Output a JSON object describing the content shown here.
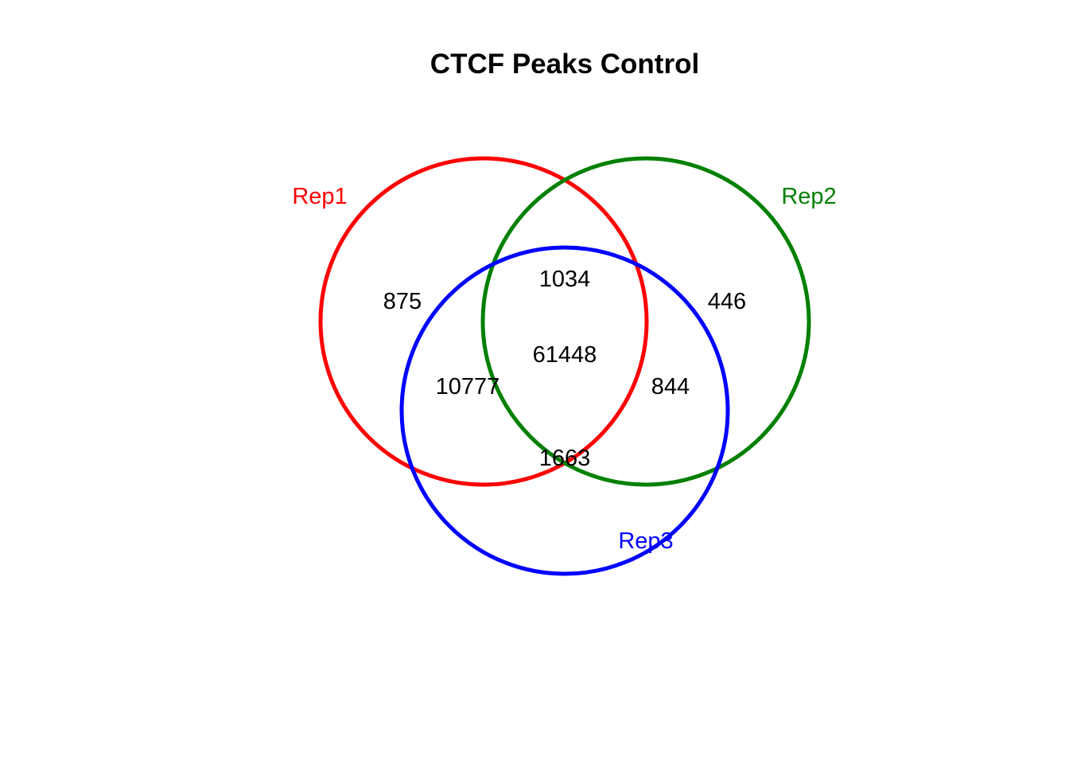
{
  "chart_data": {
    "type": "venn",
    "title": "CTCF Peaks Control",
    "sets": [
      {
        "key": "rep1",
        "name": "Rep1",
        "color": "#ff0000"
      },
      {
        "key": "rep2",
        "name": "Rep2",
        "color": "#008000"
      },
      {
        "key": "rep3",
        "name": "Rep3",
        "color": "#0000ff"
      }
    ],
    "regions": {
      "rep1_only": 875,
      "rep2_only": 446,
      "rep3_only": null,
      "rep1_rep2_only": 1034,
      "rep1_rep3_only": 10777,
      "rep2_rep3_only": 844,
      "rep1_rep2_rep3": 61448,
      "unlabeled_bottom": 1663
    },
    "labels": {
      "rep1_only": "875",
      "rep2_only": "446",
      "rep1_rep2_only": "1034",
      "rep1_rep3_only": "10777",
      "rep2_rep3_only": "844",
      "rep1_rep2_rep3": "61448",
      "unlabeled_bottom": "1663"
    }
  }
}
